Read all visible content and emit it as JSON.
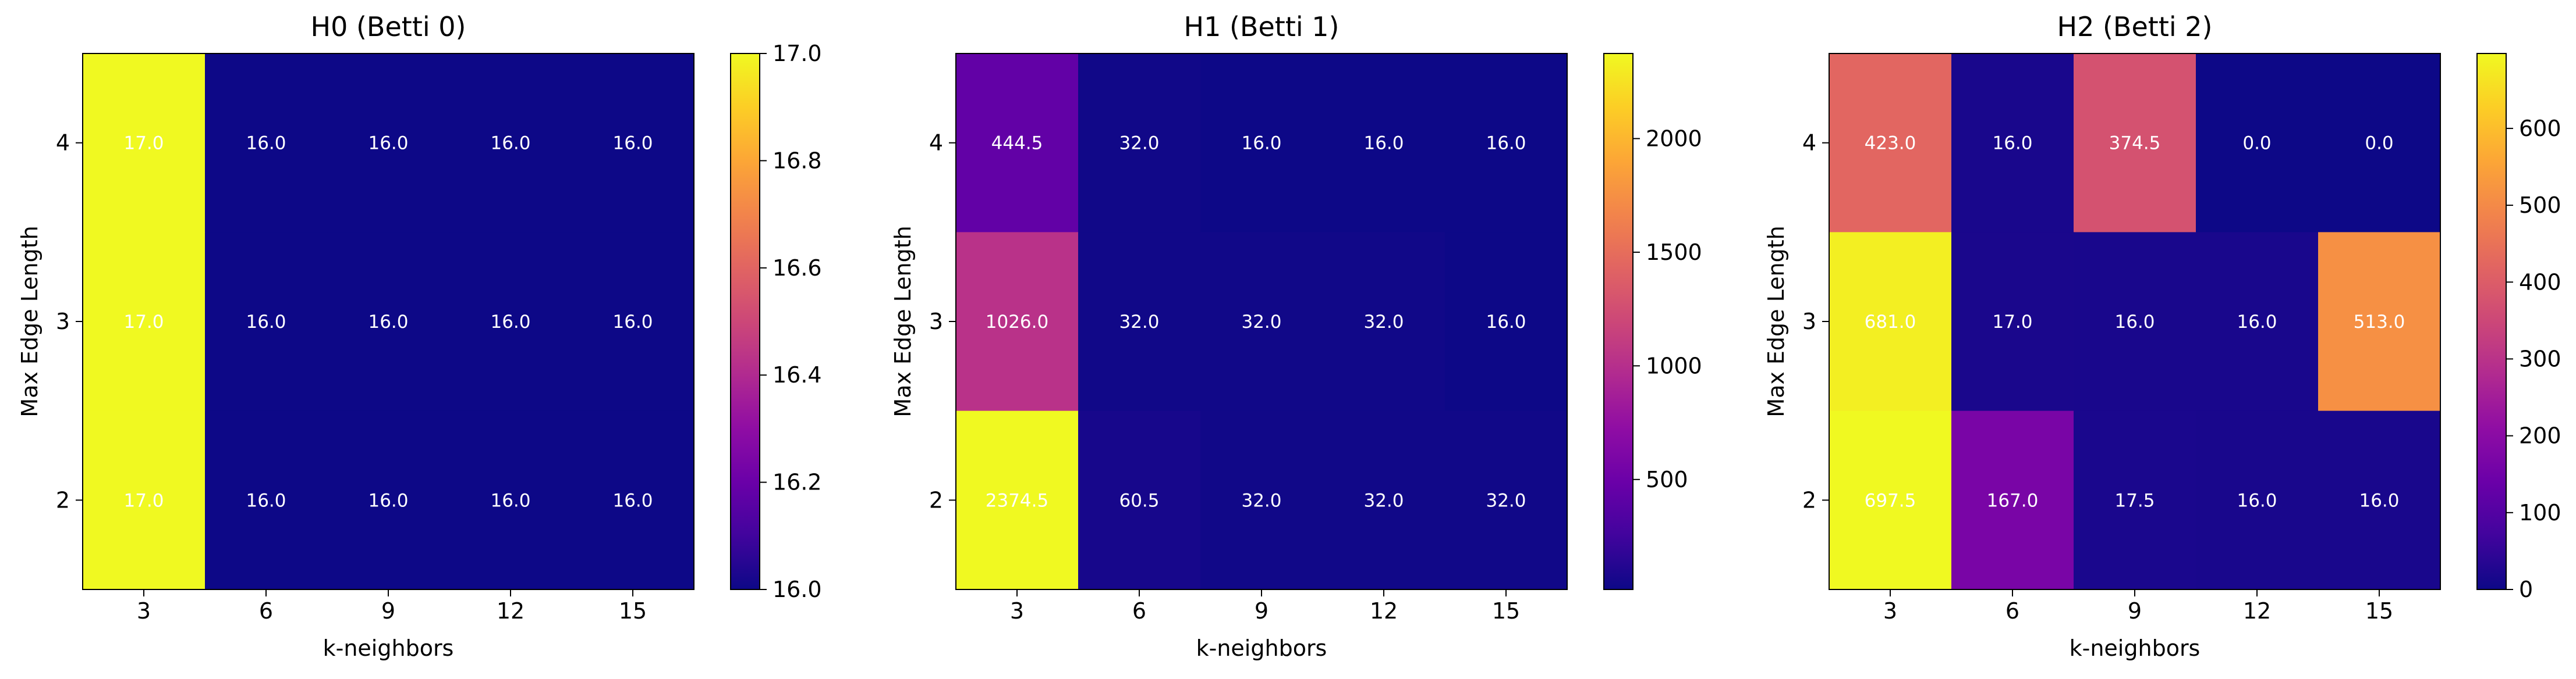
{
  "chart_data": [
    {
      "type": "heatmap",
      "title": "H0 (Betti 0)",
      "xlabel": "k-neighbors",
      "ylabel": "Max Edge Length",
      "x_categories": [
        "3",
        "6",
        "9",
        "12",
        "15"
      ],
      "y_categories": [
        "4",
        "3",
        "2"
      ],
      "values": [
        [
          17.0,
          16.0,
          16.0,
          16.0,
          16.0
        ],
        [
          17.0,
          16.0,
          16.0,
          16.0,
          16.0
        ],
        [
          17.0,
          16.0,
          16.0,
          16.0,
          16.0
        ]
      ],
      "cell_labels": [
        [
          "17.0",
          "16.0",
          "16.0",
          "16.0",
          "16.0"
        ],
        [
          "17.0",
          "16.0",
          "16.0",
          "16.0",
          "16.0"
        ],
        [
          "17.0",
          "16.0",
          "16.0",
          "16.0",
          "16.0"
        ]
      ],
      "colormap": "plasma",
      "vmin": 16.0,
      "vmax": 17.0,
      "colorbar_ticks": [
        "16.0",
        "16.2",
        "16.4",
        "16.6",
        "16.8",
        "17.0"
      ]
    },
    {
      "type": "heatmap",
      "title": "H1 (Betti 1)",
      "xlabel": "k-neighbors",
      "ylabel": "Max Edge Length",
      "x_categories": [
        "3",
        "6",
        "9",
        "12",
        "15"
      ],
      "y_categories": [
        "4",
        "3",
        "2"
      ],
      "values": [
        [
          444.5,
          32.0,
          16.0,
          16.0,
          16.0
        ],
        [
          1026.0,
          32.0,
          32.0,
          32.0,
          16.0
        ],
        [
          2374.5,
          60.5,
          32.0,
          32.0,
          32.0
        ]
      ],
      "cell_labels": [
        [
          "444.5",
          "32.0",
          "16.0",
          "16.0",
          "16.0"
        ],
        [
          "1026.0",
          "32.0",
          "32.0",
          "32.0",
          "16.0"
        ],
        [
          "2374.5",
          "60.5",
          "32.0",
          "32.0",
          "32.0"
        ]
      ],
      "colormap": "plasma",
      "vmin": 16.0,
      "vmax": 2374.5,
      "colorbar_ticks": [
        "500",
        "1000",
        "1500",
        "2000"
      ]
    },
    {
      "type": "heatmap",
      "title": "H2 (Betti 2)",
      "xlabel": "k-neighbors",
      "ylabel": "Max Edge Length",
      "x_categories": [
        "3",
        "6",
        "9",
        "12",
        "15"
      ],
      "y_categories": [
        "4",
        "3",
        "2"
      ],
      "values": [
        [
          423.0,
          16.0,
          374.5,
          0.0,
          0.0
        ],
        [
          681.0,
          17.0,
          16.0,
          16.0,
          513.0
        ],
        [
          697.5,
          167.0,
          17.5,
          16.0,
          16.0
        ]
      ],
      "cell_labels": [
        [
          "423.0",
          "16.0",
          "374.5",
          "0.0",
          "0.0"
        ],
        [
          "681.0",
          "17.0",
          "16.0",
          "16.0",
          "513.0"
        ],
        [
          "697.5",
          "167.0",
          "17.5",
          "16.0",
          "16.0"
        ]
      ],
      "colormap": "plasma",
      "vmin": 0.0,
      "vmax": 697.5,
      "colorbar_ticks": [
        "0",
        "100",
        "200",
        "300",
        "400",
        "500",
        "600"
      ]
    }
  ]
}
